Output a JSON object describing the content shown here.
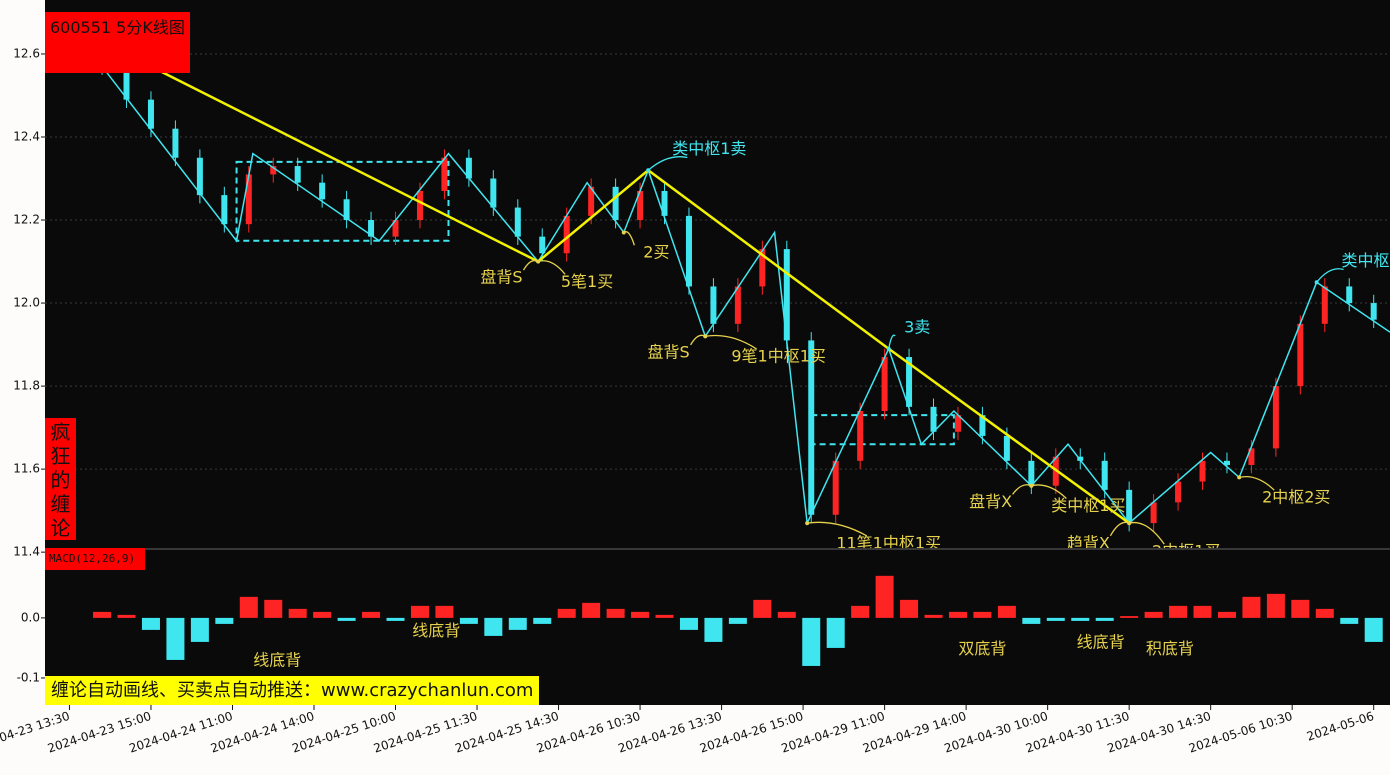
{
  "chart_data": [
    {
      "type": "candlestick",
      "title": "600551 5分K线图",
      "side_label": "疯狂的缠论",
      "x": [
        14,
        20,
        26,
        32,
        38,
        44,
        50,
        56,
        62,
        68,
        74,
        80,
        86,
        92,
        98,
        104,
        110,
        116,
        122,
        128,
        134,
        140,
        146,
        152,
        158,
        164,
        170,
        176,
        182,
        188,
        194,
        200,
        206,
        212,
        218,
        224,
        230,
        236,
        242,
        248,
        254,
        260,
        266,
        272,
        278,
        284,
        290,
        296,
        302,
        308,
        314,
        320,
        326
      ],
      "open": [
        12.6,
        12.57,
        12.49,
        12.42,
        12.35,
        12.26,
        12.19,
        12.31,
        12.33,
        12.29,
        12.25,
        12.2,
        12.16,
        12.2,
        12.27,
        12.35,
        12.3,
        12.23,
        12.16,
        12.12,
        12.21,
        12.28,
        12.2,
        12.27,
        12.21,
        12.04,
        11.95,
        12.04,
        12.13,
        11.91,
        11.49,
        11.62,
        11.74,
        11.87,
        11.75,
        11.69,
        11.73,
        11.68,
        11.62,
        11.56,
        11.63,
        11.62,
        11.55,
        11.47,
        11.52,
        11.57,
        11.62,
        11.61,
        11.65,
        11.8,
        11.95,
        12.04,
        12.0
      ],
      "high": [
        12.62,
        12.59,
        12.51,
        12.44,
        12.37,
        12.28,
        12.33,
        12.35,
        12.35,
        12.31,
        12.27,
        12.22,
        12.22,
        12.29,
        12.37,
        12.37,
        12.32,
        12.25,
        12.18,
        12.23,
        12.3,
        12.3,
        12.29,
        12.29,
        12.23,
        12.06,
        12.06,
        12.15,
        12.15,
        11.93,
        11.64,
        11.76,
        11.89,
        11.89,
        11.77,
        11.75,
        11.75,
        11.7,
        11.64,
        11.65,
        11.65,
        11.64,
        11.57,
        11.54,
        11.59,
        11.64,
        11.64,
        11.67,
        11.82,
        11.97,
        12.06,
        12.06,
        12.02
      ],
      "low": [
        12.55,
        12.47,
        12.4,
        12.33,
        12.24,
        12.17,
        12.17,
        12.29,
        12.27,
        12.23,
        12.18,
        12.14,
        12.14,
        12.18,
        12.25,
        12.28,
        12.21,
        12.14,
        12.1,
        12.1,
        12.19,
        12.18,
        12.18,
        12.19,
        12.02,
        11.93,
        11.93,
        12.02,
        11.89,
        11.47,
        11.47,
        11.6,
        11.72,
        11.73,
        11.67,
        11.67,
        11.66,
        11.6,
        11.54,
        11.54,
        11.6,
        11.53,
        11.45,
        11.45,
        11.5,
        11.55,
        11.59,
        11.59,
        11.63,
        11.78,
        11.93,
        11.98,
        11.94
      ],
      "close": [
        12.57,
        12.49,
        12.42,
        12.35,
        12.26,
        12.19,
        12.31,
        12.33,
        12.29,
        12.25,
        12.2,
        12.16,
        12.2,
        12.27,
        12.35,
        12.3,
        12.23,
        12.16,
        12.12,
        12.21,
        12.28,
        12.2,
        12.27,
        12.21,
        12.04,
        11.95,
        12.04,
        12.13,
        11.91,
        11.49,
        11.62,
        11.74,
        11.87,
        11.75,
        11.69,
        11.73,
        11.68,
        11.62,
        11.56,
        11.63,
        11.62,
        11.55,
        11.47,
        11.52,
        11.57,
        11.62,
        11.61,
        11.65,
        11.8,
        11.95,
        12.04,
        12.0,
        11.96
      ],
      "up_color": "#ff2424",
      "down_color": "#3fe6f0",
      "xlim": [
        0,
        330
      ],
      "xticks": [
        {
          "value": 6,
          "label": "2024-04-23 13:30"
        },
        {
          "value": 26,
          "label": "2024-04-23 15:00"
        },
        {
          "value": 46,
          "label": "2024-04-24 11:00"
        },
        {
          "value": 66,
          "label": "2024-04-24 14:00"
        },
        {
          "value": 86,
          "label": "2024-04-25 10:00"
        },
        {
          "value": 106,
          "label": "2024-04-25 11:30"
        },
        {
          "value": 126,
          "label": "2024-04-25 14:30"
        },
        {
          "value": 146,
          "label": "2024-04-26 10:30"
        },
        {
          "value": 166,
          "label": "2024-04-26 13:30"
        },
        {
          "value": 186,
          "label": "2024-04-26 15:00"
        },
        {
          "value": 206,
          "label": "2024-04-29 11:00"
        },
        {
          "value": 226,
          "label": "2024-04-29 14:00"
        },
        {
          "value": 246,
          "label": "2024-04-30 10:00"
        },
        {
          "value": 266,
          "label": "2024-04-30 11:30"
        },
        {
          "value": 286,
          "label": "2024-04-30 14:30"
        },
        {
          "value": 306,
          "label": "2024-05-06 10:30"
        },
        {
          "value": 326,
          "label": "2024-05-06"
        }
      ],
      "ylim": [
        11.41,
        12.73
      ],
      "yticks": [
        11.4,
        11.6,
        11.8,
        {
          "value": 12,
          "label": "12.0"
        },
        12.2,
        12.4,
        12.6
      ],
      "grid": true,
      "strokes": {
        "color": "#3fe6f0",
        "x": [
          14,
          47,
          51,
          82,
          99,
          121,
          133,
          142,
          148,
          162,
          179,
          187,
          207,
          215,
          223,
          242,
          251,
          266,
          286,
          293,
          312,
          330
        ],
        "values": [
          12.57,
          12.15,
          12.36,
          12.15,
          12.36,
          12.1,
          12.29,
          12.17,
          12.32,
          11.92,
          12.17,
          11.47,
          11.89,
          11.66,
          11.74,
          11.56,
          11.66,
          11.47,
          11.64,
          11.58,
          12.05,
          11.93
        ]
      },
      "segments": {
        "color": "#f2f200",
        "x": [
          28,
          121,
          148,
          207,
          266
        ],
        "values": [
          12.56,
          12.1,
          12.32,
          11.89,
          11.47
        ]
      },
      "pivots": [
        {
          "x": [
            47,
            99
          ],
          "y": [
            12.15,
            12.34
          ]
        },
        {
          "x": [
            188,
            223
          ],
          "y": [
            11.66,
            11.73
          ]
        }
      ],
      "pivot_color": "#3fe6f0",
      "annotations": [
        {
          "text": "类中枢1卖",
          "x": 163,
          "y": 12.37,
          "point": [
            148,
            12.32
          ],
          "color": "#3fe6f0"
        },
        {
          "text": "盘背S",
          "x": 112,
          "y": 12.06,
          "point": [
            121,
            12.1
          ],
          "color": "#e6d24c"
        },
        {
          "text": "5笔1买",
          "x": 133,
          "y": 12.05,
          "point": [
            121,
            12.1
          ],
          "color": "#e6d24c"
        },
        {
          "text": "2买",
          "x": 150,
          "y": 12.12,
          "point": [
            142,
            12.17
          ],
          "color": "#e6d24c"
        },
        {
          "text": "盘背S",
          "x": 153,
          "y": 11.88,
          "point": [
            162,
            11.92
          ],
          "color": "#e6d24c"
        },
        {
          "text": "9笔1中枢1买",
          "x": 180,
          "y": 11.87,
          "point": [
            162,
            11.92
          ],
          "color": "#e6d24c"
        },
        {
          "text": "3卖",
          "x": 214,
          "y": 11.94,
          "point": [
            207,
            11.89
          ],
          "color": "#3fe6f0"
        },
        {
          "text": "盘背X",
          "x": 232,
          "y": 11.52,
          "point": [
            242,
            11.56
          ],
          "color": "#e6d24c"
        },
        {
          "text": "类中枢1买",
          "x": 256,
          "y": 11.51,
          "point": [
            242,
            11.56
          ],
          "color": "#e6d24c"
        },
        {
          "text": "趋背X",
          "x": 256,
          "y": 11.42,
          "point": [
            266,
            11.47
          ],
          "color": "#e6d24c"
        },
        {
          "text": "11笔1中枢1买",
          "x": 207,
          "y": 11.42,
          "point": [
            187,
            11.47
          ],
          "color": "#e6d24c"
        },
        {
          "text": "2中枢1买",
          "x": 280,
          "y": 11.4,
          "point": [
            266,
            11.47
          ],
          "color": "#e6d24c"
        },
        {
          "text": "2中枢2买",
          "x": 307,
          "y": 11.53,
          "point": [
            293,
            11.58
          ],
          "color": "#e6d24c"
        },
        {
          "text": "类中枢",
          "x": 324,
          "y": 12.1,
          "point": [
            312,
            12.05
          ],
          "color": "#3fe6f0"
        }
      ]
    },
    {
      "type": "macd",
      "title": "MACD(12,26,9)",
      "x": [
        14,
        20,
        26,
        32,
        38,
        44,
        50,
        56,
        62,
        68,
        74,
        80,
        86,
        92,
        98,
        104,
        110,
        116,
        122,
        128,
        134,
        140,
        146,
        152,
        158,
        164,
        170,
        176,
        182,
        188,
        194,
        200,
        206,
        212,
        218,
        224,
        230,
        236,
        242,
        248,
        254,
        260,
        266,
        272,
        278,
        284,
        290,
        296,
        302,
        308,
        314,
        320,
        326
      ],
      "values": [
        0.01,
        0.005,
        -0.02,
        -0.07,
        -0.04,
        -0.01,
        0.035,
        0.03,
        0.015,
        0.01,
        -0.005,
        0.01,
        -0.005,
        0.02,
        0.02,
        -0.01,
        -0.03,
        -0.02,
        -0.01,
        0.015,
        0.025,
        0.015,
        0.01,
        0.005,
        -0.02,
        -0.04,
        -0.01,
        0.03,
        0.01,
        -0.08,
        -0.05,
        0.02,
        0.07,
        0.03,
        0.005,
        0.01,
        0.01,
        0.02,
        -0.01,
        -0.005,
        -0.005,
        -0.005,
        0.003,
        0.01,
        0.02,
        0.02,
        0.01,
        0.035,
        0.04,
        0.03,
        0.015,
        -0.01,
        -0.04
      ],
      "up_color": "#ff2424",
      "down_color": "#3fe6f0",
      "xlim": [
        0,
        330
      ],
      "ylim": [
        -0.145,
        0.113
      ],
      "yticks": [
        -0.1,
        {
          "value": 0,
          "label": "0.0"
        }
      ],
      "annotations": [
        {
          "text": "线底背",
          "x": 57,
          "y": -0.072,
          "color": "#e6d24c"
        },
        {
          "text": "线底背",
          "x": 96,
          "y": -0.023,
          "color": "#e6d24c"
        },
        {
          "text": "双底背",
          "x": 230,
          "y": -0.053,
          "color": "#e6d24c"
        },
        {
          "text": "线底背",
          "x": 259,
          "y": -0.042,
          "color": "#e6d24c"
        },
        {
          "text": "积底背",
          "x": 276,
          "y": -0.053,
          "color": "#e6d24c"
        }
      ]
    }
  ],
  "banner": "缠论自动画线、买卖点自动推送：www.crazychanlun.com"
}
